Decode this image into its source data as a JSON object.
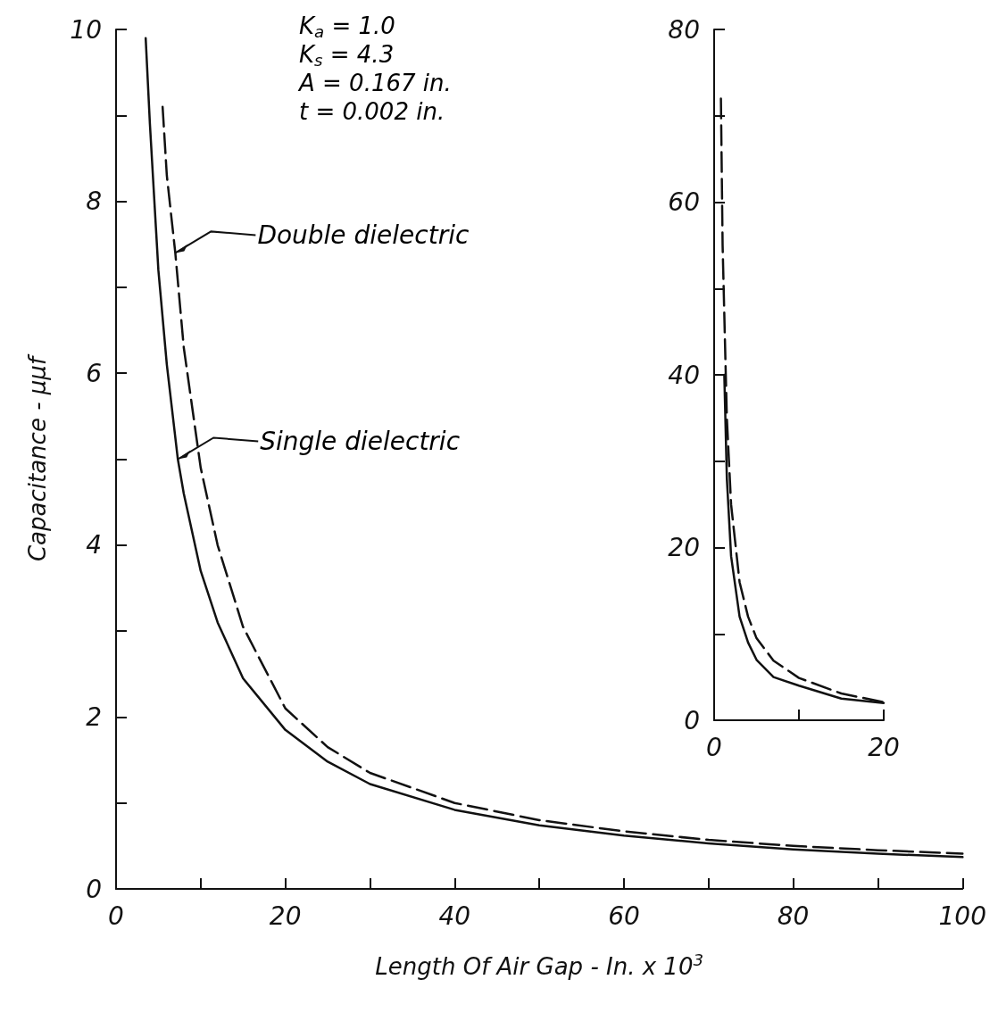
{
  "chart_data": [
    {
      "type": "line",
      "xlabel": "Length Of Air Gap - In. x 10$^{3}$",
      "ylabel": "Capacitance - μμf",
      "xlim": [
        0,
        100
      ],
      "xticks": [
        0,
        {
          "value": 10,
          "label": null
        },
        20,
        {
          "value": 30,
          "label": null
        },
        40,
        {
          "value": 50,
          "label": null
        },
        60,
        {
          "value": 70,
          "label": null
        },
        80,
        {
          "value": 90,
          "label": null
        },
        100
      ],
      "ylim": [
        0,
        10
      ],
      "yticks": [
        0,
        {
          "value": 1,
          "label": null
        },
        2,
        {
          "value": 3,
          "label": null
        },
        4,
        {
          "value": 5,
          "label": null
        },
        6,
        {
          "value": 7,
          "label": null
        },
        8,
        {
          "value": 9,
          "label": null
        },
        10
      ],
      "annotations": [
        "K$_{a}$ = 1.0",
        "K$_{s}$ = 4.3",
        "A = 0.167 in.",
        "t = 0.002 in.",
        {
          "text": "Double dielectric",
          "x": 7,
          "y": 7.4
        },
        {
          "text": "Single dielectric",
          "x": 7.3,
          "y": 5.0
        }
      ],
      "series": [
        {
          "color": "#111111",
          "line_style": "dashed",
          "x": [
            5.5,
            6,
            7,
            8,
            10,
            12,
            15,
            20,
            25,
            30,
            40,
            50,
            60,
            70,
            80,
            90,
            100
          ],
          "values": [
            9.1,
            8.3,
            7.4,
            6.3,
            4.9,
            4.0,
            3.05,
            2.1,
            1.65,
            1.35,
            1.0,
            0.8,
            0.67,
            0.57,
            0.5,
            0.45,
            0.41
          ]
        },
        {
          "color": "#111111",
          "line_style": "solid",
          "x": [
            3.5,
            4,
            5,
            6,
            7.3,
            8,
            10,
            12,
            15,
            20,
            25,
            30,
            40,
            50,
            60,
            70,
            80,
            90,
            100
          ],
          "values": [
            9.9,
            8.9,
            7.2,
            6.1,
            5.0,
            4.6,
            3.7,
            3.1,
            2.45,
            1.85,
            1.48,
            1.22,
            0.92,
            0.74,
            0.62,
            0.53,
            0.46,
            0.41,
            0.37
          ]
        }
      ]
    },
    {
      "type": "line",
      "xlim": [
        0,
        20
      ],
      "xticks": [
        0,
        {
          "value": 10,
          "label": null
        },
        20
      ],
      "ylim": [
        0,
        80
      ],
      "yticks": [
        0,
        {
          "value": 10,
          "label": null
        },
        20,
        {
          "value": 30,
          "label": null
        },
        40,
        {
          "value": 50,
          "label": null
        },
        60,
        {
          "value": 70,
          "label": null
        },
        80
      ],
      "series": [
        {
          "color": "#111111",
          "line_style": "dashed",
          "x": [
            0.8,
            1,
            1.5,
            2,
            3,
            4,
            5,
            7,
            10,
            15,
            20
          ],
          "values": [
            72,
            55,
            35,
            25,
            16,
            12,
            9.5,
            6.9,
            4.9,
            3.1,
            2.1
          ]
        },
        {
          "color": "#111111",
          "line_style": "solid",
          "x": [
            1.2,
            1.5,
            2,
            3,
            4,
            5,
            7,
            10,
            15,
            20
          ],
          "values": [
            40,
            28,
            19,
            12,
            9,
            7,
            5,
            4,
            2.5,
            2
          ]
        }
      ]
    }
  ]
}
